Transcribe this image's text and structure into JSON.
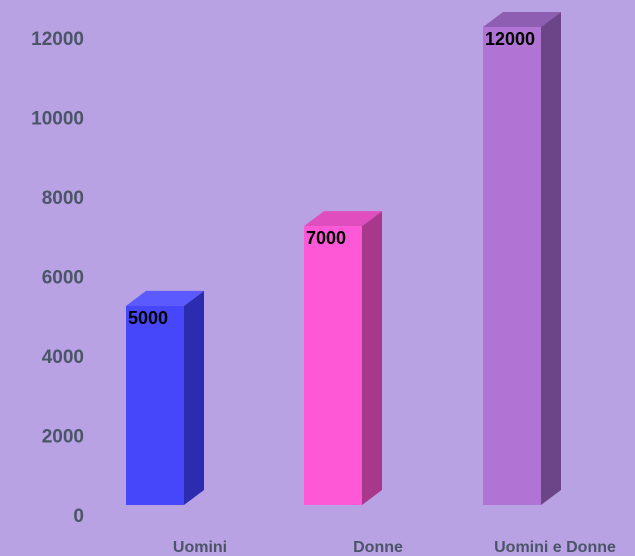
{
  "chart_data": {
    "type": "bar",
    "style": "3d-column",
    "categories": [
      "Uomini",
      "Donne",
      "Uomini e Donne"
    ],
    "values": [
      5000,
      7000,
      12000
    ],
    "data_labels": [
      "5000",
      "7000",
      "12000"
    ],
    "title": "",
    "xlabel": "",
    "ylabel": "",
    "ylim": [
      0,
      12000
    ],
    "yticks": [
      0,
      2000,
      4000,
      6000,
      8000,
      10000,
      12000
    ],
    "ytick_labels": [
      "0",
      "2000",
      "4000",
      "6000",
      "8000",
      "10000",
      "12000"
    ],
    "grid": false,
    "legend": "none",
    "colors": {
      "background": "#b9a2e3",
      "bars": [
        {
          "front": "#4646fb",
          "side": "#2c2cb0",
          "top": "#5a5aff"
        },
        {
          "front": "#ff58d6",
          "side": "#a8388b",
          "top": "#e04dbd"
        },
        {
          "front": "#b075d4",
          "side": "#6b4587",
          "top": "#8d5eb2"
        }
      ],
      "tick_text": "#4b5568",
      "data_label_text": "#000000"
    }
  }
}
